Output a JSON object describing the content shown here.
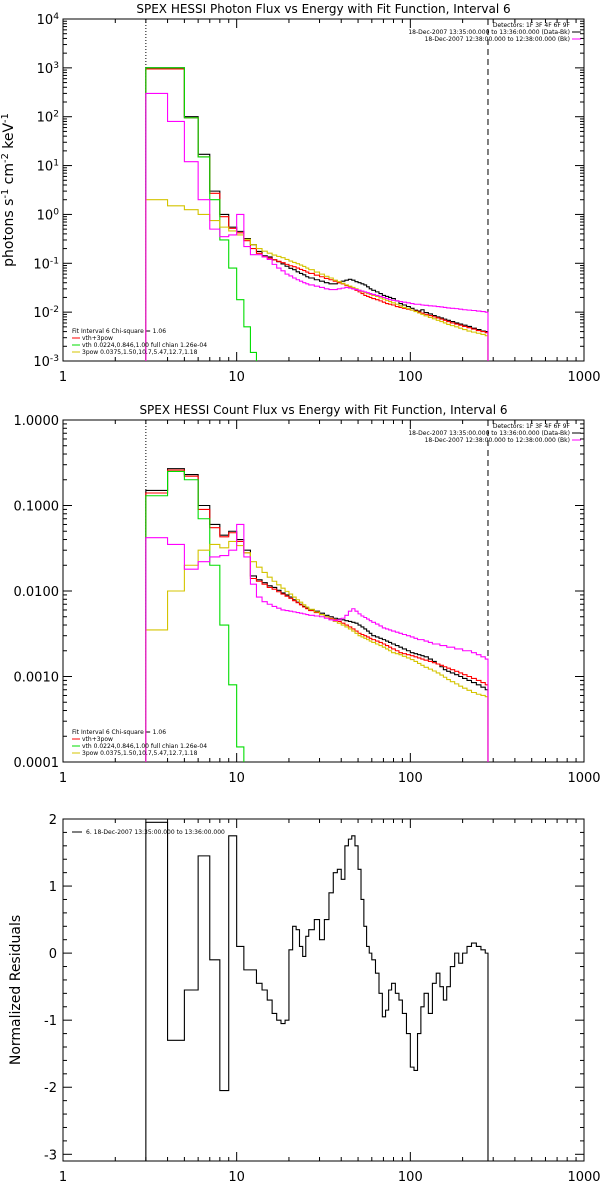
{
  "chart_data": [
    {
      "type": "line",
      "title": "SPEX HESSI Photon Flux vs Energy with Fit Function, Interval 6",
      "ylabel": "photons s$^{-1}$ cm$^{-2}$ keV$^{-1}$",
      "xlabel": "",
      "xscale": "log",
      "yscale": "log",
      "xlim": [
        1,
        1000
      ],
      "ylim": [
        0.001,
        10000
      ],
      "x_ticks": [
        "1",
        "10",
        "100",
        "1000"
      ],
      "y_ticks": [
        "10$^{-3}$",
        "10$^{-2}$",
        "10$^{-1}$",
        "10$^{0}$",
        "10$^{1}$",
        "10$^{2}$",
        "10$^{3}$",
        "10$^{4}$"
      ],
      "vlines": [
        {
          "x": 3,
          "style": "dotted"
        },
        {
          "x": 280,
          "style": "dashed"
        }
      ],
      "legend_right": [
        "Detectors: 1F 3F 4F 6F 9F",
        "18-Dec-2007 13:35:00.000 to 13:36:00.000 (Data-Bk)",
        "18-Dec-2007 12:38:00.000 to 12:38:00.000 (Bk)"
      ],
      "legend_left": [
        "Fit Interval 6   Chi-square = 1.06",
        "vth+3pow",
        "vth 0.0224,0.846,1.00  full chian 1.26e-04",
        "3pow 0.0375,1.50,10.7,5.47,12.7,1.18"
      ],
      "edges": [
        3,
        4,
        5,
        6,
        7,
        8,
        9,
        10,
        11,
        12,
        13,
        14,
        15,
        16,
        17,
        18,
        19,
        20,
        21,
        22,
        23,
        24,
        25,
        26,
        28,
        30,
        32,
        34,
        36,
        38,
        40,
        42,
        44,
        46,
        48,
        50,
        52,
        54,
        56,
        58,
        60,
        63,
        66,
        69,
        72,
        75,
        78,
        82,
        86,
        90,
        95,
        100,
        105,
        110,
        115,
        120,
        127,
        134,
        141,
        148,
        155,
        162,
        170,
        180,
        190,
        200,
        212,
        225,
        240,
        255,
        270,
        280
      ],
      "series": [
        {
          "color": "#000000",
          "values": [
            1000,
            1000,
            100,
            17,
            3.0,
            1.0,
            0.55,
            0.45,
            0.32,
            0.24,
            0.175,
            0.142,
            0.135,
            0.118,
            0.108,
            0.097,
            0.087,
            0.079,
            0.074,
            0.067,
            0.062,
            0.058,
            0.053,
            0.05,
            0.046,
            0.043,
            0.04,
            0.038,
            0.038,
            0.04,
            0.043,
            0.045,
            0.047,
            0.045,
            0.042,
            0.04,
            0.038,
            0.036,
            0.033,
            0.03,
            0.028,
            0.026,
            0.024,
            0.022,
            0.021,
            0.02,
            0.019,
            0.017,
            0.015,
            0.014,
            0.013,
            0.012,
            0.011,
            0.0105,
            0.0112,
            0.0098,
            0.0092,
            0.0085,
            0.008,
            0.0076,
            0.0072,
            0.0068,
            0.0064,
            0.006,
            0.0057,
            0.0054,
            0.0051,
            0.0047,
            0.0044,
            0.0041,
            0.004
          ]
        },
        {
          "color": "#ff0000",
          "values": [
            950,
            950,
            95,
            15,
            2.7,
            0.9,
            0.52,
            0.42,
            0.29,
            0.2,
            0.16,
            0.137,
            0.127,
            0.118,
            0.11,
            0.103,
            0.095,
            0.089,
            0.085,
            0.08,
            0.075,
            0.071,
            0.066,
            0.062,
            0.057,
            0.053,
            0.049,
            0.046,
            0.043,
            0.04,
            0.038,
            0.035,
            0.033,
            0.03,
            0.028,
            0.026,
            0.024,
            0.022,
            0.021,
            0.02,
            0.019,
            0.018,
            0.017,
            0.016,
            0.015,
            0.0145,
            0.014,
            0.013,
            0.0125,
            0.012,
            0.0115,
            0.011,
            0.0105,
            0.01,
            0.0095,
            0.009,
            0.0085,
            0.008,
            0.0076,
            0.0072,
            0.0068,
            0.0064,
            0.006,
            0.0057,
            0.0054,
            0.0051,
            0.0048,
            0.0045,
            0.0042,
            0.004,
            0.0038
          ]
        },
        {
          "color": "#00dd00",
          "values": [
            1000,
            1000,
            95,
            15,
            2.0,
            0.3,
            0.08,
            0.018,
            0.005,
            0.0015,
            0.0007
          ]
        },
        {
          "color": "#d4c400",
          "values": [
            2.0,
            1.5,
            1.25,
            1.0,
            0.75,
            0.55,
            0.46,
            0.38,
            0.31,
            0.24,
            0.2,
            0.177,
            0.161,
            0.147,
            0.138,
            0.13,
            0.12,
            0.111,
            0.104,
            0.098,
            0.092,
            0.086,
            0.08,
            0.074,
            0.066,
            0.06,
            0.054,
            0.05,
            0.045,
            0.042,
            0.039,
            0.036,
            0.034,
            0.032,
            0.03,
            0.028,
            0.026,
            0.025,
            0.024,
            0.023,
            0.022,
            0.021,
            0.0195,
            0.0185,
            0.0175,
            0.0165,
            0.0155,
            0.0145,
            0.0135,
            0.0125,
            0.0118,
            0.011,
            0.0103,
            0.0096,
            0.009,
            0.0084,
            0.0078,
            0.0073,
            0.0068,
            0.0064,
            0.006,
            0.0056,
            0.0053,
            0.005,
            0.0047,
            0.0044,
            0.0041,
            0.0039,
            0.0037,
            0.0035,
            0.0033
          ]
        },
        {
          "color": "#ff00ff",
          "values": [
            300,
            80,
            12,
            2.0,
            0.5,
            0.35,
            0.38,
            1.0,
            0.22,
            0.15,
            0.15,
            0.135,
            0.12,
            0.095,
            0.08,
            0.07,
            0.06,
            0.055,
            0.05,
            0.046,
            0.043,
            0.04,
            0.038,
            0.036,
            0.034,
            0.032,
            0.03,
            0.029,
            0.029,
            0.03,
            0.031,
            0.032,
            0.031,
            0.03,
            0.029,
            0.028,
            0.027,
            0.026,
            0.025,
            0.024,
            0.023,
            0.022,
            0.021,
            0.02,
            0.019,
            0.018,
            0.0175,
            0.017,
            0.0165,
            0.016,
            0.0155,
            0.015,
            0.0145,
            0.0145,
            0.014,
            0.0138,
            0.0135,
            0.0133,
            0.013,
            0.0128,
            0.0125,
            0.0122,
            0.012,
            0.0118,
            0.0115,
            0.0112,
            0.011,
            0.0108,
            0.0105,
            0.0103,
            0.01
          ]
        }
      ]
    },
    {
      "type": "line",
      "title": "SPEX HESSI Count Flux vs Energy with Fit Function, Interval 6",
      "ylabel": "",
      "xlabel": "",
      "xscale": "log",
      "yscale": "log",
      "xlim": [
        1,
        1000
      ],
      "ylim": [
        0.0001,
        1.0
      ],
      "x_ticks": [
        "1",
        "10",
        "100",
        "1000"
      ],
      "y_ticks": [
        "0.0001",
        "0.0010",
        "0.0100",
        "0.1000",
        "1.0000"
      ],
      "vlines": [
        {
          "x": 3,
          "style": "dotted"
        },
        {
          "x": 280,
          "style": "dashed"
        }
      ],
      "legend_right": [
        "Detectors: 1F 3F 4F 6F 9F",
        "18-Dec-2007 13:35:00.000 to 13:36:00.000 (Data-Bk)",
        "18-Dec-2007 12:38:00.000 to 12:38:00.000 (Bk)"
      ],
      "legend_left": [
        "Fit Interval 6   Chi-square = 1.06",
        "vth+3pow",
        "vth 0.0224,0.846,1.00  full chian 1.26e-04",
        "3pow 0.0375,1.50,10.7,5.47,12.7,1.18"
      ],
      "edges": [
        3,
        4,
        5,
        6,
        7,
        8,
        9,
        10,
        11,
        12,
        13,
        14,
        15,
        16,
        17,
        18,
        19,
        20,
        21,
        22,
        23,
        24,
        25,
        26,
        28,
        30,
        32,
        34,
        36,
        38,
        40,
        42,
        44,
        46,
        48,
        50,
        52,
        54,
        56,
        58,
        60,
        63,
        66,
        69,
        72,
        75,
        78,
        82,
        86,
        90,
        95,
        100,
        105,
        110,
        115,
        120,
        127,
        134,
        141,
        148,
        155,
        162,
        170,
        180,
        190,
        200,
        212,
        225,
        240,
        255,
        270,
        280
      ],
      "series": [
        {
          "color": "#000000",
          "values": [
            0.15,
            0.27,
            0.23,
            0.1,
            0.06,
            0.045,
            0.05,
            0.04,
            0.03,
            0.015,
            0.0135,
            0.0125,
            0.0115,
            0.011,
            0.0102,
            0.0095,
            0.009,
            0.0085,
            0.0079,
            0.0074,
            0.007,
            0.0066,
            0.0063,
            0.006,
            0.0058,
            0.0055,
            0.0052,
            0.005,
            0.0048,
            0.0047,
            0.0046,
            0.0045,
            0.0044,
            0.0043,
            0.0042,
            0.004,
            0.0038,
            0.0036,
            0.0034,
            0.0032,
            0.003,
            0.0029,
            0.0028,
            0.0027,
            0.0026,
            0.0025,
            0.0024,
            0.0023,
            0.0022,
            0.0021,
            0.002,
            0.0019,
            0.00185,
            0.0018,
            0.00175,
            0.0017,
            0.0016,
            0.0015,
            0.0014,
            0.0013,
            0.0012,
            0.00115,
            0.0011,
            0.00105,
            0.001,
            0.00095,
            0.0009,
            0.00085,
            0.0008,
            0.00075,
            0.0007
          ]
        },
        {
          "color": "#ff0000",
          "values": [
            0.14,
            0.26,
            0.22,
            0.09,
            0.055,
            0.043,
            0.048,
            0.038,
            0.028,
            0.014,
            0.013,
            0.012,
            0.011,
            0.0105,
            0.0098,
            0.0092,
            0.0087,
            0.0082,
            0.0077,
            0.0073,
            0.0069,
            0.0065,
            0.0062,
            0.0059,
            0.0056,
            0.0053,
            0.005,
            0.0048,
            0.0046,
            0.0044,
            0.0042,
            0.004,
            0.0038,
            0.0036,
            0.0034,
            0.0032,
            0.0031,
            0.003,
            0.0029,
            0.0028,
            0.0027,
            0.0026,
            0.0025,
            0.0024,
            0.0023,
            0.0022,
            0.0021,
            0.002,
            0.0019,
            0.00185,
            0.0018,
            0.00175,
            0.0017,
            0.00165,
            0.0016,
            0.00155,
            0.0015,
            0.00145,
            0.0014,
            0.00135,
            0.0013,
            0.00125,
            0.0012,
            0.00115,
            0.0011,
            0.00105,
            0.001,
            0.00095,
            0.0009,
            0.00085,
            0.0008
          ]
        },
        {
          "color": "#00dd00",
          "values": [
            0.13,
            0.25,
            0.2,
            0.07,
            0.02,
            0.004,
            0.0008,
            0.00015
          ]
        },
        {
          "color": "#d4c400",
          "values": [
            0.0035,
            0.01,
            0.02,
            0.03,
            0.035,
            0.032,
            0.038,
            0.034,
            0.028,
            0.022,
            0.019,
            0.0165,
            0.0145,
            0.013,
            0.0118,
            0.0108,
            0.0099,
            0.0092,
            0.0085,
            0.0079,
            0.0074,
            0.0069,
            0.0065,
            0.0061,
            0.0057,
            0.0053,
            0.005,
            0.0047,
            0.0044,
            0.0042,
            0.004,
            0.0038,
            0.0036,
            0.0034,
            0.0032,
            0.003,
            0.0029,
            0.0028,
            0.0027,
            0.0026,
            0.0025,
            0.0024,
            0.0023,
            0.0022,
            0.0021,
            0.002,
            0.0019,
            0.00185,
            0.0018,
            0.00172,
            0.00165,
            0.00158,
            0.0015,
            0.00142,
            0.00135,
            0.00128,
            0.00122,
            0.00116,
            0.0011,
            0.00104,
            0.00098,
            0.00092,
            0.00087,
            0.00082,
            0.00077,
            0.00073,
            0.00069,
            0.00065,
            0.00062,
            0.0006,
            0.00058
          ]
        },
        {
          "color": "#ff00ff",
          "values": [
            0.042,
            0.035,
            0.018,
            0.022,
            0.025,
            0.026,
            0.03,
            0.06,
            0.025,
            0.012,
            0.0085,
            0.0075,
            0.007,
            0.0066,
            0.0063,
            0.006,
            0.0059,
            0.0058,
            0.0057,
            0.0056,
            0.0055,
            0.0054,
            0.0053,
            0.0052,
            0.0051,
            0.005,
            0.0048,
            0.0046,
            0.0045,
            0.0046,
            0.0048,
            0.0052,
            0.0058,
            0.0062,
            0.0058,
            0.0054,
            0.0051,
            0.0049,
            0.0047,
            0.0045,
            0.0043,
            0.0041,
            0.0039,
            0.0037,
            0.0036,
            0.0035,
            0.0034,
            0.0033,
            0.0032,
            0.0031,
            0.003,
            0.0029,
            0.0028,
            0.0027,
            0.0027,
            0.0026,
            0.0025,
            0.0024,
            0.0024,
            0.0023,
            0.0023,
            0.0022,
            0.0022,
            0.0021,
            0.0021,
            0.002,
            0.002,
            0.0019,
            0.0018,
            0.0017,
            0.0016
          ]
        }
      ]
    },
    {
      "type": "line",
      "title": "",
      "ylabel": "Normalized Residuals",
      "xlabel": "",
      "xscale": "log",
      "yscale": "linear",
      "xlim": [
        1,
        1000
      ],
      "ylim": [
        -3.1,
        2.0
      ],
      "x_ticks": [
        "1",
        "10",
        "100",
        "1000"
      ],
      "y_ticks": [
        "-3",
        "-2",
        "-1",
        "0",
        "1",
        "2"
      ],
      "legend_left": [
        "6. 18-Dec-2007 13:35:00.000 to 13:36:00.000"
      ],
      "edges": [
        3,
        4,
        5,
        6,
        7,
        8,
        9,
        10,
        11,
        12,
        13,
        14,
        15,
        16,
        17,
        18,
        19,
        20,
        21,
        22,
        23,
        24,
        25,
        26,
        28,
        30,
        32,
        34,
        36,
        38,
        40,
        42,
        44,
        46,
        48,
        50,
        52,
        54,
        56,
        58,
        60,
        63,
        66,
        69,
        72,
        75,
        78,
        82,
        86,
        90,
        95,
        100,
        105,
        110,
        115,
        120,
        127,
        134,
        141,
        148,
        155,
        162,
        170,
        180,
        190,
        200,
        212,
        225,
        240,
        255,
        270,
        280
      ],
      "series": [
        {
          "color": "#000000",
          "values": [
            1.95,
            -1.3,
            -0.55,
            1.45,
            -0.1,
            -2.05,
            1.75,
            0.1,
            -0.25,
            -0.25,
            -0.45,
            -0.55,
            -0.7,
            -0.9,
            -1.0,
            -1.05,
            -1.0,
            0.05,
            0.4,
            0.35,
            0.1,
            -0.05,
            0.25,
            0.35,
            0.5,
            0.2,
            0.5,
            0.9,
            1.2,
            1.25,
            1.1,
            1.6,
            1.7,
            1.75,
            1.6,
            1.25,
            0.8,
            0.4,
            0.1,
            0.0,
            -0.1,
            -0.3,
            -0.6,
            -0.95,
            -0.85,
            -0.55,
            -0.45,
            -0.6,
            -0.7,
            -0.9,
            -1.2,
            -1.7,
            -1.75,
            -1.2,
            -0.8,
            -0.6,
            -0.9,
            -0.45,
            -0.3,
            -0.5,
            -0.7,
            -0.5,
            -0.2,
            0.0,
            -0.15,
            0.0,
            0.1,
            0.15,
            0.1,
            0.05,
            0.0
          ]
        }
      ]
    }
  ]
}
